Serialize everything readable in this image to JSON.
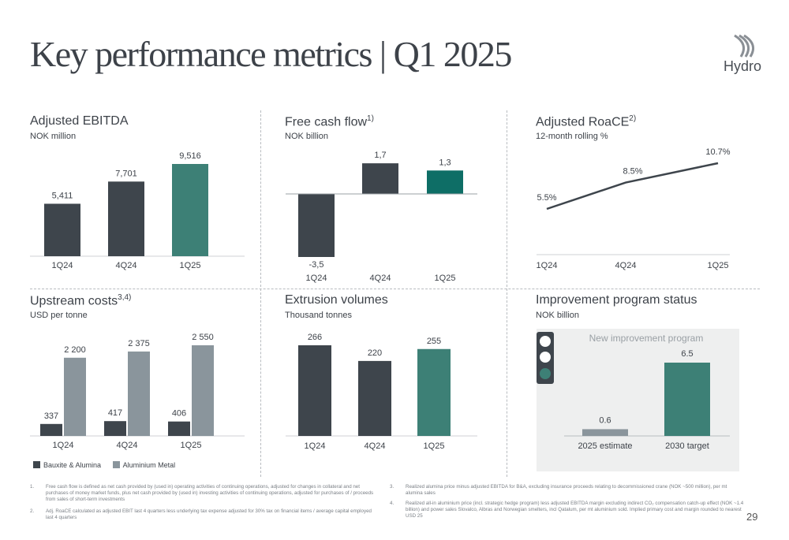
{
  "page_title": "Key performance metrics | Q1 2025",
  "logo_text": "Hydro",
  "page_number": "29",
  "colors": {
    "dark": "#3e454c",
    "teal": "#3d8076",
    "teal_dark": "#0e6e66",
    "gray": "#8a959c",
    "line": "#3e454c"
  },
  "panels": {
    "ebitda": {
      "title": "Adjusted EBITDA",
      "sup": "",
      "subtitle": "NOK million"
    },
    "fcf": {
      "title": "Free cash flow",
      "sup": "1)",
      "subtitle": "NOK billion"
    },
    "roace": {
      "title": "Adjusted RoaCE",
      "sup": "2)",
      "subtitle": "12-month rolling %"
    },
    "upstream": {
      "title": "Upstream costs",
      "sup": "3,4)",
      "subtitle": "USD per tonne"
    },
    "extrusion": {
      "title": "Extrusion volumes",
      "sup": "",
      "subtitle": "Thousand tonnes"
    },
    "improvement": {
      "title": "Improvement program status",
      "sup": "",
      "subtitle": "NOK billion"
    }
  },
  "legend": {
    "series1": "Bauxite & Alumina",
    "series2": "Aluminium Metal"
  },
  "improvement_box_title": "New improvement program",
  "chart_data": [
    {
      "type": "bar",
      "title": "Adjusted EBITDA",
      "unit": "NOK million",
      "categories": [
        "1Q24",
        "4Q24",
        "1Q25"
      ],
      "values": [
        5411,
        7701,
        9516
      ],
      "labels": [
        "5,411",
        "7,701",
        "9,516"
      ]
    },
    {
      "type": "bar",
      "title": "Free cash flow",
      "unit": "NOK billion",
      "categories": [
        "1Q24",
        "4Q24",
        "1Q25"
      ],
      "values": [
        -3.5,
        1.7,
        1.3
      ],
      "labels": [
        "-3,5",
        "1,7",
        "1,3"
      ]
    },
    {
      "type": "line",
      "title": "Adjusted RoaCE",
      "unit": "12-month rolling %",
      "categories": [
        "1Q24",
        "4Q24",
        "1Q25"
      ],
      "values": [
        5.5,
        8.5,
        10.7
      ],
      "labels": [
        "5.5%",
        "8.5%",
        "10.7%"
      ]
    },
    {
      "type": "bar",
      "title": "Upstream costs",
      "unit": "USD per tonne",
      "categories": [
        "1Q24",
        "4Q24",
        "1Q25"
      ],
      "series": [
        {
          "name": "Bauxite & Alumina",
          "values": [
            337,
            417,
            406
          ],
          "labels": [
            "337",
            "417",
            "406"
          ]
        },
        {
          "name": "Aluminium Metal",
          "values": [
            2200,
            2375,
            2550
          ],
          "labels": [
            "2 200",
            "2 375",
            "2 550"
          ]
        }
      ]
    },
    {
      "type": "bar",
      "title": "Extrusion volumes",
      "unit": "Thousand tonnes",
      "categories": [
        "1Q24",
        "4Q24",
        "1Q25"
      ],
      "values": [
        266,
        220,
        255
      ],
      "labels": [
        "266",
        "220",
        "255"
      ]
    },
    {
      "type": "bar",
      "title": "Improvement program status",
      "unit": "NOK billion",
      "categories": [
        "2025  estimate",
        "2030  target"
      ],
      "values": [
        0.6,
        6.5
      ],
      "labels": [
        "0.6",
        "6.5"
      ]
    }
  ],
  "footnotes": [
    {
      "num": "1.",
      "text": "Free cash flow is defined as net cash provided by (used in) operating activities of continuing operations, adjusted for changes in collateral and net purchases of money market funds, plus net cash provided by (used in) investing activities of continuing operations, adjusted for purchases of / proceeds from sales of short-term investments"
    },
    {
      "num": "2.",
      "text": "Adj. RoaCE calculated as adjusted EBIT last 4 quarters less underlying tax expense adjusted for 30% tax on financial items / average capital employed last 4 quarters"
    },
    {
      "num": "3.",
      "text": "Realized alumina price minus adjusted EBITDA for B&A, excluding insurance proceeds relating to decommissioned crane (NOK ~500 million), per mt alumina sales"
    },
    {
      "num": "4.",
      "text": "Realized all-in aluminium price (incl. strategic hedge program) less adjusted EBITDA margin excluding indirect CO₂ compensation catch-up effect (NOK ~1.4 billion) and power sales Slovalco, Albras and Norwegian smelters, incl Qatalum, per mt aluminium sold. Implied primary cost and margin rounded to nearest USD 25"
    }
  ]
}
